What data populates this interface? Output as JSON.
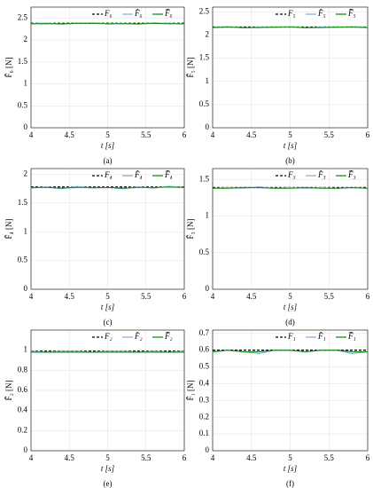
{
  "chart_data": [
    {
      "type": "line",
      "caption": "(a)",
      "xlabel": "t [s]",
      "ylabel": "F̂₆ [N]",
      "xlim": [
        4,
        6
      ],
      "xticks": [
        4,
        4.5,
        5,
        5.5,
        6
      ],
      "ylim": [
        0,
        2.75
      ],
      "yticks": [
        0,
        0.5,
        1,
        1.5,
        2,
        2.5
      ],
      "grid": true,
      "legend": "upper right",
      "x": [
        4,
        4.2,
        4.4,
        4.6,
        4.8,
        5,
        5.2,
        5.4,
        5.6,
        5.8,
        6
      ],
      "series": [
        {
          "name": "F₆",
          "color": "#000000",
          "style": "dashed",
          "values": [
            2.38,
            2.38,
            2.38,
            2.38,
            2.38,
            2.38,
            2.38,
            2.38,
            2.38,
            2.38,
            2.38
          ]
        },
        {
          "name": "F̂₆",
          "color": "#7fb2e5",
          "style": "solid",
          "values": [
            2.37,
            2.39,
            2.36,
            2.38,
            2.39,
            2.37,
            2.38,
            2.36,
            2.39,
            2.38,
            2.37
          ]
        },
        {
          "name": "F̂̅₆",
          "color": "#1a8a1a",
          "style": "solid",
          "values": [
            2.37,
            2.37,
            2.37,
            2.38,
            2.38,
            2.37,
            2.37,
            2.37,
            2.38,
            2.37,
            2.37
          ]
        }
      ]
    },
    {
      "type": "line",
      "caption": "(b)",
      "xlabel": "t [s]",
      "ylabel": "F̂₅ [N]",
      "xlim": [
        4,
        6
      ],
      "xticks": [
        4,
        4.5,
        5,
        5.5,
        6
      ],
      "ylim": [
        0,
        2.6
      ],
      "yticks": [
        0,
        0.5,
        1,
        1.5,
        2,
        2.5
      ],
      "grid": true,
      "legend": "upper right",
      "x": [
        4,
        4.2,
        4.4,
        4.6,
        4.8,
        5,
        5.2,
        5.4,
        5.6,
        5.8,
        6
      ],
      "series": [
        {
          "name": "F₅",
          "color": "#000000",
          "style": "dashed",
          "values": [
            2.17,
            2.17,
            2.17,
            2.17,
            2.17,
            2.17,
            2.17,
            2.17,
            2.17,
            2.17,
            2.17
          ]
        },
        {
          "name": "F̂₅",
          "color": "#7fb2e5",
          "style": "solid",
          "values": [
            2.16,
            2.18,
            2.15,
            2.17,
            2.16,
            2.18,
            2.15,
            2.17,
            2.16,
            2.18,
            2.16
          ]
        },
        {
          "name": "F̂̅₅",
          "color": "#1a8a1a",
          "style": "solid",
          "values": [
            2.16,
            2.17,
            2.16,
            2.16,
            2.17,
            2.17,
            2.16,
            2.16,
            2.17,
            2.17,
            2.16
          ]
        }
      ]
    },
    {
      "type": "line",
      "caption": "(c)",
      "xlabel": "t [s]",
      "ylabel": "F̂₄ [N]",
      "xlim": [
        4,
        6
      ],
      "xticks": [
        4,
        4.5,
        5,
        5.5,
        6
      ],
      "ylim": [
        0,
        2.1
      ],
      "yticks": [
        0,
        0.5,
        1,
        1.5,
        2
      ],
      "grid": true,
      "legend": "upper right",
      "x": [
        4,
        4.2,
        4.4,
        4.6,
        4.8,
        5,
        5.2,
        5.4,
        5.6,
        5.8,
        6
      ],
      "series": [
        {
          "name": "F₄",
          "color": "#000000",
          "style": "dashed",
          "values": [
            1.78,
            1.78,
            1.78,
            1.78,
            1.78,
            1.78,
            1.78,
            1.78,
            1.78,
            1.78,
            1.78
          ]
        },
        {
          "name": "F̂₄",
          "color": "#7fb2e5",
          "style": "solid",
          "values": [
            1.76,
            1.78,
            1.75,
            1.79,
            1.76,
            1.77,
            1.75,
            1.78,
            1.76,
            1.79,
            1.77
          ]
        },
        {
          "name": "F̂̅₄",
          "color": "#1a8a1a",
          "style": "solid",
          "values": [
            1.77,
            1.77,
            1.76,
            1.77,
            1.77,
            1.77,
            1.76,
            1.77,
            1.77,
            1.78,
            1.77
          ]
        }
      ]
    },
    {
      "type": "line",
      "caption": "(d)",
      "xlabel": "t [s]",
      "ylabel": "F̂₃ [N]",
      "xlim": [
        4,
        6
      ],
      "xticks": [
        4,
        4.5,
        5,
        5.5,
        6
      ],
      "ylim": [
        0,
        1.65
      ],
      "yticks": [
        0,
        0.5,
        1,
        1.5
      ],
      "grid": true,
      "legend": "upper right",
      "x": [
        4,
        4.2,
        4.4,
        4.6,
        4.8,
        5,
        5.2,
        5.4,
        5.6,
        5.8,
        6
      ],
      "series": [
        {
          "name": "F₃",
          "color": "#000000",
          "style": "dashed",
          "values": [
            1.39,
            1.39,
            1.39,
            1.39,
            1.39,
            1.39,
            1.39,
            1.39,
            1.39,
            1.39,
            1.39
          ]
        },
        {
          "name": "F̂₃",
          "color": "#7fb2e5",
          "style": "solid",
          "values": [
            1.38,
            1.39,
            1.38,
            1.4,
            1.38,
            1.39,
            1.38,
            1.39,
            1.38,
            1.39,
            1.38
          ]
        },
        {
          "name": "F̂̅₃",
          "color": "#1a8a1a",
          "style": "solid",
          "values": [
            1.38,
            1.38,
            1.39,
            1.39,
            1.38,
            1.38,
            1.39,
            1.38,
            1.38,
            1.39,
            1.38
          ]
        }
      ]
    },
    {
      "type": "line",
      "caption": "(e)",
      "xlabel": "t [s]",
      "ylabel": "F̂₂ [N]",
      "xlim": [
        4,
        6
      ],
      "xticks": [
        4,
        4.5,
        5,
        5.5,
        6
      ],
      "ylim": [
        0,
        1.2
      ],
      "yticks": [
        0,
        0.2,
        0.4,
        0.6,
        0.8,
        1
      ],
      "grid": true,
      "legend": "upper right",
      "x": [
        4,
        4.2,
        4.4,
        4.6,
        4.8,
        5,
        5.2,
        5.4,
        5.6,
        5.8,
        6
      ],
      "series": [
        {
          "name": "F₂",
          "color": "#000000",
          "style": "dashed",
          "values": [
            0.99,
            0.99,
            0.99,
            0.99,
            0.99,
            0.99,
            0.99,
            0.99,
            0.99,
            0.99,
            0.99
          ]
        },
        {
          "name": "F̂₂",
          "color": "#7fb2e5",
          "style": "solid",
          "values": [
            0.99,
            0.98,
            0.99,
            0.99,
            0.98,
            0.99,
            0.99,
            0.98,
            0.99,
            0.98,
            0.99
          ]
        },
        {
          "name": "F̂̅₂",
          "color": "#1a8a1a",
          "style": "solid",
          "values": [
            0.98,
            0.98,
            0.98,
            0.98,
            0.98,
            0.98,
            0.98,
            0.98,
            0.98,
            0.98,
            0.98
          ]
        }
      ]
    },
    {
      "type": "line",
      "caption": "(f)",
      "xlabel": "t [s]",
      "ylabel": "F̂₁ [N]",
      "xlim": [
        4,
        6
      ],
      "xticks": [
        4,
        4.5,
        5,
        5.5,
        6
      ],
      "ylim": [
        0,
        0.72
      ],
      "yticks": [
        0,
        0.1,
        0.2,
        0.3,
        0.4,
        0.5,
        0.6,
        0.7
      ],
      "grid": true,
      "legend": "upper right",
      "x": [
        4,
        4.2,
        4.4,
        4.6,
        4.8,
        5,
        5.2,
        5.4,
        5.6,
        5.8,
        6
      ],
      "series": [
        {
          "name": "F₁",
          "color": "#000000",
          "style": "dashed",
          "values": [
            0.6,
            0.6,
            0.6,
            0.6,
            0.6,
            0.6,
            0.6,
            0.6,
            0.6,
            0.6,
            0.6
          ]
        },
        {
          "name": "F̂₁",
          "color": "#7fb2e5",
          "style": "solid",
          "values": [
            0.59,
            0.6,
            0.59,
            0.58,
            0.6,
            0.6,
            0.59,
            0.6,
            0.6,
            0.58,
            0.59
          ]
        },
        {
          "name": "F̂̅₁",
          "color": "#1a8a1a",
          "style": "solid",
          "values": [
            0.59,
            0.6,
            0.59,
            0.59,
            0.6,
            0.6,
            0.59,
            0.6,
            0.6,
            0.59,
            0.59
          ]
        }
      ]
    }
  ]
}
